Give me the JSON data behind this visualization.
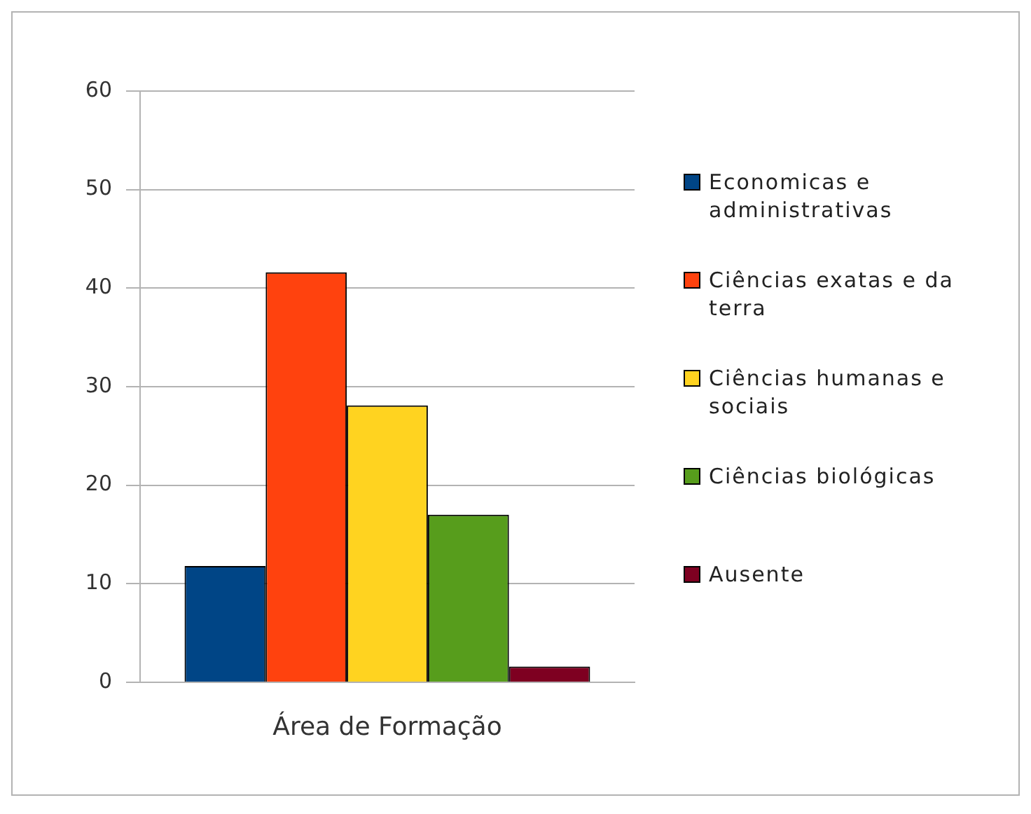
{
  "chart_data": {
    "type": "bar",
    "categories": [
      "Área de Formação"
    ],
    "series": [
      {
        "name": "Economicas e administrativas",
        "color": "#004586",
        "values": [
          11.8
        ]
      },
      {
        "name": "Ciências exatas e da terra",
        "color": "#ff420e",
        "values": [
          41.6
        ]
      },
      {
        "name": "Ciências humanas e sociais",
        "color": "#ffd320",
        "values": [
          28.1
        ]
      },
      {
        "name": "Ciências biológicas",
        "color": "#579d1c",
        "values": [
          17.0
        ]
      },
      {
        "name": "Ausente",
        "color": "#7e0021",
        "values": [
          1.6
        ]
      }
    ],
    "ylim": [
      0,
      60
    ],
    "yticks": [
      0,
      10,
      20,
      30,
      40,
      50,
      60
    ],
    "grid": "y",
    "legend": "right"
  }
}
